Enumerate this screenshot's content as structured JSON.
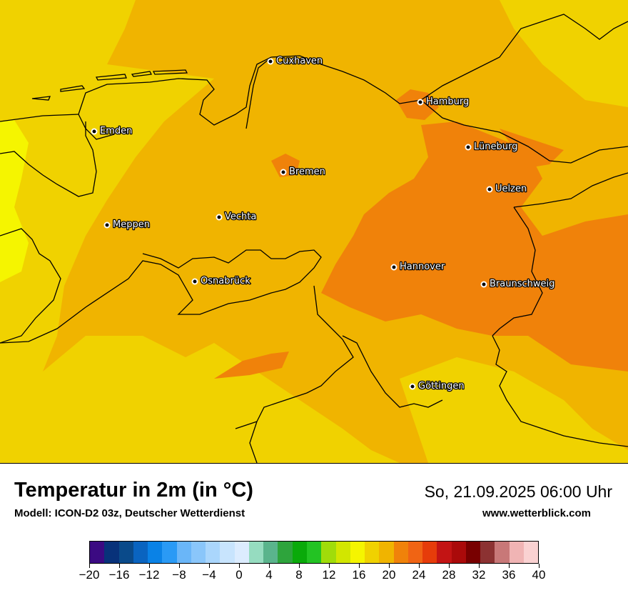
{
  "title": "Temperatur in 2m (in °C)",
  "subtitle": "Modell: ICON-D2 03z, Deutscher Wetterdienst",
  "datetime": "So, 21.09.2025 06:00 Uhr",
  "website": "www.wetterblick.com",
  "cities": [
    {
      "name": "Cuxhaven"
    },
    {
      "name": "Hamburg"
    },
    {
      "name": "Emden"
    },
    {
      "name": "Lüneburg"
    },
    {
      "name": "Bremen"
    },
    {
      "name": "Uelzen"
    },
    {
      "name": "Vechta"
    },
    {
      "name": "Meppen"
    },
    {
      "name": "Hannover"
    },
    {
      "name": "Osnabrück"
    },
    {
      "name": "Braunschweig"
    },
    {
      "name": "Göttingen"
    }
  ],
  "legend": {
    "tick_labels": [
      "−20",
      "−16",
      "−12",
      "−8",
      "−4",
      "0",
      "4",
      "8",
      "12",
      "16",
      "20",
      "24",
      "28",
      "32",
      "36",
      "40"
    ],
    "min": -20,
    "max": 40,
    "step": 2,
    "colors": [
      "#3b0a82",
      "#08327a",
      "#0a4a8a",
      "#0a64c0",
      "#0a82e6",
      "#2a9af5",
      "#6ab6f8",
      "#8ac6fa",
      "#aad6fc",
      "#c8e4fd",
      "#dcecfe",
      "#96dcc0",
      "#5ab48c",
      "#2ea43c",
      "#0aaa0a",
      "#23c323",
      "#a0dc0a",
      "#d2e600",
      "#f5f500",
      "#f0d200",
      "#f0b400",
      "#f0820a",
      "#f06414",
      "#e63c0a",
      "#c31414",
      "#aa0a0a",
      "#780000",
      "#8c3232",
      "#c87878",
      "#f0b4b4",
      "#fad2d2"
    ]
  },
  "map_colors": {
    "dominant_band": "#f0b400",
    "warm_band": "#f0820a",
    "cool_band": "#f0d200",
    "coldest_band": "#f5f500"
  }
}
